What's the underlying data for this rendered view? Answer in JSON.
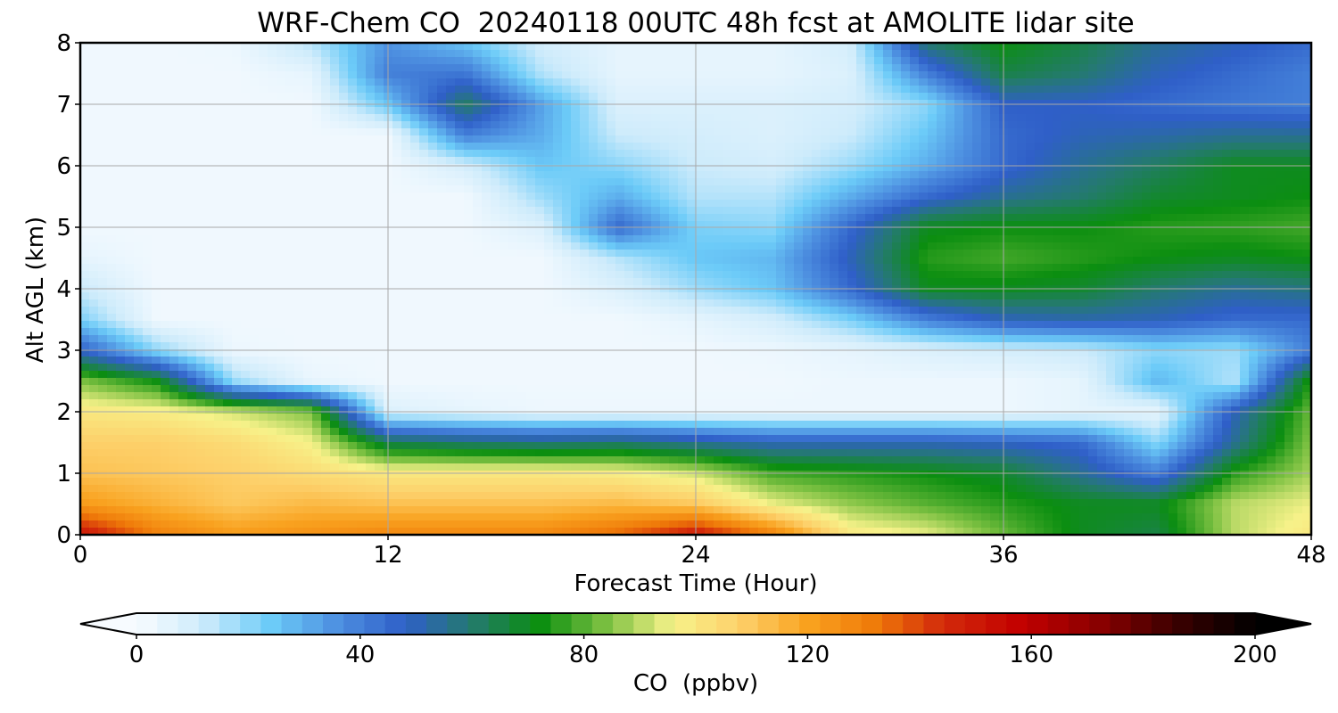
{
  "chart_data": {
    "type": "heatmap",
    "title": "WRF-Chem CO  20240118 00UTC 48h fcst at AMOLITE lidar site",
    "xlabel": "Forecast Time (Hour)",
    "ylabel": "Alt AGL (km)",
    "colorbar_label": "CO  (ppbv)",
    "x": {
      "ticks": [
        0,
        12,
        24,
        36,
        48
      ],
      "range": [
        0,
        48
      ]
    },
    "y": {
      "ticks": [
        0,
        1,
        2,
        3,
        4,
        5,
        6,
        7,
        8
      ],
      "range": [
        0,
        8
      ]
    },
    "colorbar": {
      "ticks": [
        0,
        40,
        80,
        120,
        160,
        200
      ],
      "range": [
        0,
        200
      ],
      "extend": "both"
    },
    "grid": true,
    "colormap": [
      [
        0,
        "#f7fbff"
      ],
      [
        12,
        "#cdebfb"
      ],
      [
        24,
        "#6ccbf8"
      ],
      [
        36,
        "#4d8fe0"
      ],
      [
        48,
        "#2f5fc8"
      ],
      [
        60,
        "#247a6e"
      ],
      [
        72,
        "#0b8e10"
      ],
      [
        84,
        "#7dc142"
      ],
      [
        96,
        "#f7f28a"
      ],
      [
        108,
        "#fdd06a"
      ],
      [
        120,
        "#f9a21f"
      ],
      [
        132,
        "#ef7a09"
      ],
      [
        144,
        "#d32b0b"
      ],
      [
        158,
        "#c20000"
      ],
      [
        172,
        "#8a0000"
      ],
      [
        186,
        "#3a0000"
      ],
      [
        200,
        "#000000"
      ]
    ],
    "time_hours": [
      0,
      3,
      6,
      9,
      12,
      15,
      18,
      21,
      24,
      27,
      30,
      33,
      36,
      39,
      42,
      45,
      48
    ],
    "altitude_km": [
      0.0,
      0.5,
      1.0,
      1.5,
      2.0,
      2.5,
      3.0,
      3.5,
      4.0,
      4.5,
      5.0,
      5.5,
      6.0,
      6.5,
      7.0,
      7.5,
      8.0
    ],
    "values_ppbv": [
      [
        152,
        130,
        122,
        125,
        128,
        128,
        128,
        135,
        150,
        130,
        100,
        95,
        82,
        70,
        65,
        90,
        100
      ],
      [
        122,
        116,
        110,
        114,
        112,
        112,
        112,
        114,
        110,
        95,
        86,
        80,
        75,
        70,
        70,
        90,
        95
      ],
      [
        112,
        110,
        108,
        104,
        100,
        100,
        100,
        98,
        92,
        78,
        75,
        72,
        68,
        55,
        40,
        75,
        88
      ],
      [
        108,
        108,
        104,
        96,
        64,
        60,
        58,
        60,
        55,
        50,
        50,
        50,
        48,
        45,
        20,
        55,
        85
      ],
      [
        100,
        98,
        92,
        84,
        8,
        5,
        3,
        3,
        3,
        3,
        3,
        3,
        3,
        5,
        5,
        50,
        82
      ],
      [
        84,
        72,
        18,
        4,
        2,
        2,
        2,
        2,
        2,
        2,
        3,
        3,
        3,
        5,
        28,
        15,
        75
      ],
      [
        48,
        20,
        3,
        2,
        2,
        2,
        2,
        2,
        2,
        3,
        5,
        8,
        10,
        12,
        20,
        18,
        40
      ],
      [
        22,
        2,
        2,
        2,
        2,
        2,
        2,
        2,
        5,
        10,
        22,
        40,
        50,
        52,
        50,
        45,
        45
      ],
      [
        12,
        2,
        2,
        2,
        2,
        2,
        2,
        8,
        18,
        25,
        45,
        70,
        70,
        68,
        60,
        55,
        58
      ],
      [
        5,
        2,
        2,
        2,
        2,
        2,
        2,
        15,
        25,
        28,
        50,
        75,
        78,
        75,
        72,
        70,
        72
      ],
      [
        2,
        2,
        2,
        2,
        2,
        2,
        8,
        45,
        22,
        20,
        45,
        70,
        72,
        72,
        75,
        76,
        78
      ],
      [
        2,
        2,
        2,
        2,
        2,
        2,
        18,
        30,
        15,
        15,
        30,
        45,
        55,
        60,
        68,
        70,
        72
      ],
      [
        2,
        2,
        2,
        2,
        2,
        10,
        25,
        20,
        12,
        10,
        18,
        30,
        45,
        55,
        62,
        70,
        70
      ],
      [
        2,
        2,
        2,
        2,
        2,
        40,
        30,
        12,
        10,
        8,
        12,
        25,
        45,
        50,
        52,
        55,
        55
      ],
      [
        2,
        2,
        2,
        2,
        25,
        62,
        32,
        8,
        8,
        8,
        10,
        20,
        48,
        48,
        45,
        42,
        40
      ],
      [
        2,
        2,
        2,
        5,
        40,
        42,
        15,
        5,
        5,
        5,
        8,
        40,
        65,
        60,
        50,
        45,
        40
      ],
      [
        2,
        2,
        3,
        15,
        35,
        25,
        10,
        5,
        5,
        5,
        10,
        60,
        72,
        65,
        55,
        50,
        45
      ]
    ]
  }
}
